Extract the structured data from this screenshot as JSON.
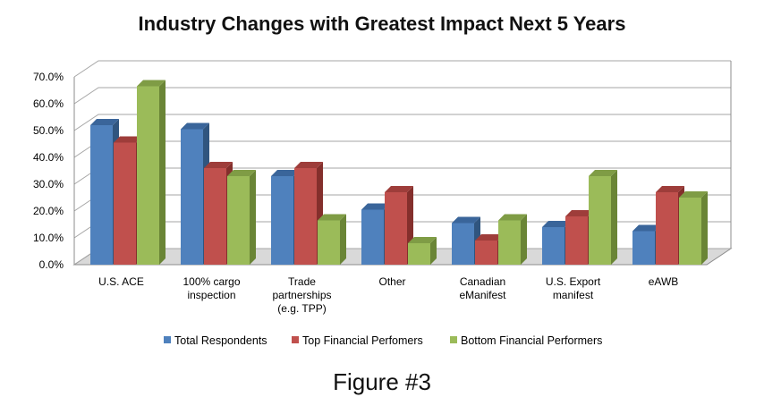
{
  "chart_data": {
    "type": "bar",
    "title": "Industry Changes with Greatest Impact Next 5 Years",
    "categories": [
      [
        "U.S. ACE"
      ],
      [
        "100% cargo",
        "inspection"
      ],
      [
        "Trade",
        "partnerships",
        "(e.g. TPP)"
      ],
      [
        "Other"
      ],
      [
        "Canadian",
        "eManifest"
      ],
      [
        "U.S. Export",
        "manifest"
      ],
      [
        "eAWB"
      ]
    ],
    "series": [
      {
        "name": "Total Respondents",
        "values": [
          52,
          50.5,
          33,
          20.5,
          15.5,
          14,
          12.5
        ]
      },
      {
        "name": "Top Financial Perfomers",
        "values": [
          45.5,
          36,
          36,
          27,
          9,
          18,
          27
        ]
      },
      {
        "name": "Bottom Financial Performers",
        "values": [
          66.5,
          33,
          16.5,
          8,
          16.5,
          33,
          25
        ]
      }
    ],
    "y_ticks": [
      "0.0%",
      "10.0%",
      "20.0%",
      "30.0%",
      "40.0%",
      "50.0%",
      "60.0%",
      "70.0%"
    ],
    "ylim": [
      0,
      70
    ],
    "y_unit": "%",
    "xlabel": "",
    "ylabel": "",
    "legend_position": "bottom",
    "grid": true,
    "colors": {
      "series": [
        "#4f81bd",
        "#c0504d",
        "#9bbb59"
      ],
      "series_side": [
        "#30557f",
        "#842f2c",
        "#6a8536"
      ],
      "series_top": [
        "#3a659a",
        "#9e3d3a",
        "#7f9c45"
      ],
      "grid": "#a6a6a6",
      "floor": "#d9d9d9"
    }
  },
  "caption": "Figure #3"
}
